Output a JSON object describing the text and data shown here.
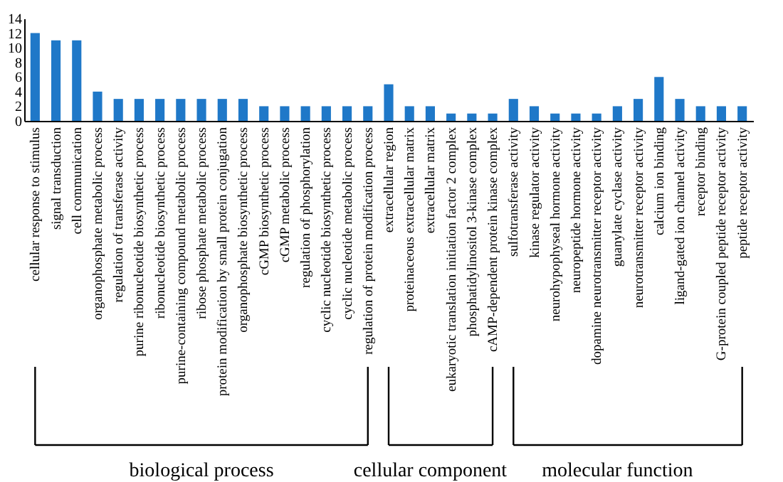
{
  "chart_data": {
    "type": "bar",
    "categories": [
      "cellular response to stimulus",
      "signal transduction",
      "cell communication",
      "organophosphate metabolic process",
      "regulation of transferase activity",
      "purine ribonucleotide biosynthetic process",
      "ribonucleotide biosynthetic process",
      "purine-containing compound metabolic process",
      "ribose phosphate metabolic process",
      "protein modification by small protein conjugation",
      "organophosphate biosynthetic process",
      "cGMP biosynthetic process",
      "cGMP metabolic process",
      "regulation of phosphorylation",
      "cyclic nucleotide biosynthetic process",
      "cyclic nucleotide metabolic process",
      "regulation of protein modification process",
      "extracellular region",
      "proteinaceous extracellular matrix",
      "extracellular matrix",
      "eukaryotic translation initiation factor 2 complex",
      "phosphatidylinositol 3-kinase complex",
      "cAMP-dependent protein kinase complex",
      "sulfotransferase activity",
      "kinase regulator activity",
      "neurohypophyseal hormone activity",
      "neuropeptide hormone activity",
      "dopamine neurotransmitter receptor activity",
      "guanylate cyclase activity",
      "neurotransmitter receptor activity",
      "calcium ion binding",
      "ligand-gated ion channel activity",
      "receptor binding",
      "G-protein coupled peptide receptor activity",
      "peptide receptor activity"
    ],
    "values": [
      12,
      11,
      11,
      4,
      3,
      3,
      3,
      3,
      3,
      3,
      3,
      2,
      2,
      2,
      2,
      2,
      2,
      5,
      2,
      2,
      1,
      1,
      1,
      3,
      2,
      1,
      1,
      1,
      2,
      3,
      6,
      3,
      2,
      2,
      2
    ],
    "color": "#1f78c8",
    "ylim": [
      0,
      14
    ],
    "yticks": [
      0,
      2,
      4,
      6,
      8,
      10,
      12,
      14
    ],
    "grid": false,
    "annotations": [
      "biological process",
      "cellular component",
      "molecular function"
    ]
  }
}
